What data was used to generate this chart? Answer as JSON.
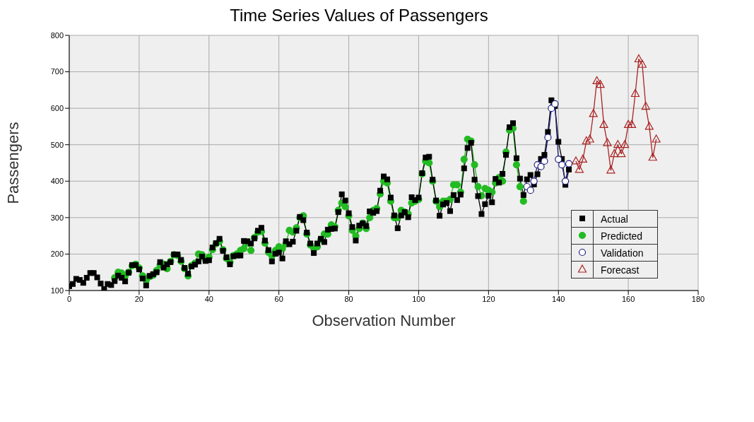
{
  "chart_data": {
    "type": "line",
    "title": "Time Series Values of Passengers",
    "xlabel": "Observation Number",
    "ylabel": "Passengers",
    "xlim": [
      0,
      180
    ],
    "xticks": [
      0,
      20,
      40,
      60,
      80,
      100,
      120,
      140,
      160,
      180
    ],
    "ylim": [
      100,
      800
    ],
    "yticks": [
      100,
      200,
      300,
      400,
      500,
      600,
      700,
      800
    ],
    "grid": true,
    "legend": "bottom right",
    "line_style": "solid",
    "series": [
      {
        "name": "Actual",
        "color": "#000000",
        "marker": "square",
        "x": [
          0,
          1,
          2,
          3,
          4,
          5,
          6,
          7,
          8,
          9,
          10,
          11,
          12,
          13,
          14,
          15,
          16,
          17,
          18,
          19,
          20,
          21,
          22,
          23,
          24,
          25,
          26,
          27,
          28,
          29,
          30,
          31,
          32,
          33,
          34,
          35,
          36,
          37,
          38,
          39,
          40,
          41,
          42,
          43,
          44,
          45,
          46,
          47,
          48,
          49,
          50,
          51,
          52,
          53,
          54,
          55,
          56,
          57,
          58,
          59,
          60,
          61,
          62,
          63,
          64,
          65,
          66,
          67,
          68,
          69,
          70,
          71,
          72,
          73,
          74,
          75,
          76,
          77,
          78,
          79,
          80,
          81,
          82,
          83,
          84,
          85,
          86,
          87,
          88,
          89,
          90,
          91,
          92,
          93,
          94,
          95,
          96,
          97,
          98,
          99,
          100,
          101,
          102,
          103,
          104,
          105,
          106,
          107,
          108,
          109,
          110,
          111,
          112,
          113,
          114,
          115,
          116,
          117,
          118,
          119,
          120,
          121,
          122,
          123,
          124,
          125,
          126,
          127,
          128,
          129,
          130,
          131,
          132,
          133,
          134,
          135,
          136,
          137,
          138,
          139,
          140,
          141,
          142,
          143
        ],
        "values": [
          112,
          118,
          132,
          129,
          121,
          135,
          148,
          148,
          136,
          119,
          104,
          118,
          115,
          126,
          141,
          135,
          125,
          149,
          170,
          170,
          158,
          133,
          114,
          140,
          145,
          150,
          178,
          163,
          172,
          178,
          199,
          199,
          184,
          162,
          146,
          166,
          171,
          180,
          193,
          181,
          183,
          218,
          230,
          242,
          209,
          191,
          172,
          194,
          196,
          196,
          236,
          235,
          229,
          243,
          264,
          272,
          237,
          211,
          180,
          201,
          204,
          188,
          235,
          227,
          234,
          264,
          302,
          293,
          259,
          229,
          203,
          229,
          242,
          233,
          267,
          269,
          270,
          315,
          364,
          347,
          312,
          274,
          237,
          278,
          284,
          277,
          317,
          313,
          318,
          374,
          413,
          405,
          355,
          306,
          271,
          306,
          315,
          301,
          356,
          348,
          355,
          422,
          465,
          467,
          404,
          347,
          305,
          336,
          340,
          318,
          362,
          348,
          363,
          435,
          491,
          505,
          404,
          359,
          310,
          337,
          360,
          342,
          406,
          396,
          420,
          472,
          548,
          559,
          463,
          407,
          362,
          405,
          417,
          391,
          419,
          461,
          472,
          535,
          622,
          606,
          508,
          461,
          390,
          432
        ]
      },
      {
        "name": "Predicted",
        "color": "#22bb22",
        "marker": "circle",
        "x": [
          13,
          14,
          15,
          16,
          17,
          18,
          19,
          20,
          21,
          22,
          23,
          24,
          25,
          26,
          27,
          28,
          29,
          30,
          31,
          32,
          33,
          34,
          35,
          36,
          37,
          38,
          39,
          40,
          41,
          42,
          43,
          44,
          45,
          46,
          47,
          48,
          49,
          50,
          51,
          52,
          53,
          54,
          55,
          56,
          57,
          58,
          59,
          60,
          61,
          62,
          63,
          64,
          65,
          66,
          67,
          68,
          69,
          70,
          71,
          72,
          73,
          74,
          75,
          76,
          77,
          78,
          79,
          80,
          81,
          82,
          83,
          84,
          85,
          86,
          87,
          88,
          89,
          90,
          91,
          92,
          93,
          94,
          95,
          96,
          97,
          98,
          99,
          100,
          101,
          102,
          103,
          104,
          105,
          106,
          107,
          108,
          109,
          110,
          111,
          112,
          113,
          114,
          115,
          116,
          117,
          118,
          119,
          120,
          121,
          122,
          123,
          124,
          125,
          126,
          127,
          128,
          129,
          130
        ],
        "values": [
          135,
          150,
          148,
          140,
          150,
          168,
          172,
          162,
          140,
          128,
          138,
          142,
          155,
          170,
          172,
          160,
          180,
          198,
          196,
          180,
          160,
          140,
          168,
          175,
          200,
          198,
          185,
          192,
          212,
          228,
          235,
          212,
          188,
          178,
          196,
          200,
          210,
          215,
          230,
          210,
          245,
          260,
          262,
          230,
          205,
          195,
          210,
          220,
          215,
          228,
          265,
          260,
          272,
          300,
          305,
          255,
          225,
          215,
          220,
          240,
          255,
          255,
          280,
          275,
          320,
          340,
          330,
          305,
          265,
          250,
          270,
          285,
          270,
          300,
          320,
          325,
          365,
          400,
          395,
          345,
          300,
          300,
          320,
          315,
          310,
          340,
          345,
          350,
          420,
          455,
          450,
          400,
          345,
          330,
          345,
          345,
          350,
          390,
          390,
          370,
          460,
          515,
          510,
          445,
          385,
          360,
          380,
          375,
          370,
          395,
          410,
          400,
          480,
          540,
          545,
          445,
          385,
          345
        ]
      },
      {
        "name": "Validation",
        "color": "#202080",
        "marker": "circle",
        "x": [
          131,
          132,
          133,
          134,
          135,
          136,
          137,
          138,
          139,
          140,
          141,
          142,
          143
        ],
        "values": [
          385,
          375,
          400,
          445,
          440,
          455,
          520,
          600,
          612,
          460,
          445,
          400,
          448
        ]
      },
      {
        "name": "Forecast",
        "color": "#aa2222",
        "marker": "triangle",
        "x": [
          145,
          146,
          147,
          148,
          149,
          150,
          151,
          152,
          153,
          154,
          155,
          156,
          157,
          158,
          159,
          160,
          161,
          162,
          163,
          164,
          165,
          166,
          167,
          168
        ],
        "values": [
          455,
          432,
          460,
          510,
          515,
          585,
          675,
          665,
          555,
          505,
          430,
          475,
          500,
          475,
          500,
          555,
          555,
          640,
          735,
          720,
          605,
          550,
          465,
          515
        ]
      }
    ]
  }
}
